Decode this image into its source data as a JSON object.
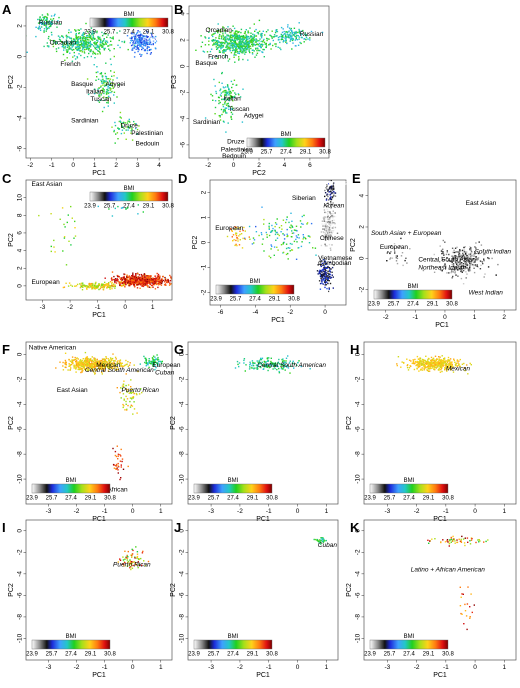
{
  "figure": {
    "panels": [
      "A",
      "B",
      "C",
      "D",
      "E",
      "F",
      "G",
      "H",
      "I",
      "J",
      "K"
    ]
  },
  "chart_data": [
    {
      "panel": "A",
      "type": "scatter",
      "xlabel": "PC1",
      "ylabel": "PC2",
      "xticks": [
        -2,
        -1,
        0,
        1,
        2,
        3,
        4
      ],
      "yticks": [
        2,
        0,
        -2,
        -4,
        -6
      ],
      "xlim": [
        -2.2,
        4.6
      ],
      "ylim": [
        -6.6,
        3.3
      ],
      "legend": {
        "title": "BMI",
        "ticks": [
          "23.9",
          "25.7",
          "27.4",
          "29.1",
          "30.8"
        ],
        "position": "top-right"
      },
      "annotations": [
        {
          "text": "Russian",
          "x": -1.6,
          "y": 2.1
        },
        {
          "text": "Orcadian",
          "x": -1.1,
          "y": 0.8
        },
        {
          "text": "French",
          "x": -0.6,
          "y": -0.6
        },
        {
          "text": "Ashkenazi",
          "x": 3.2,
          "y": 1.0,
          "white": true
        },
        {
          "text": "Basque",
          "x": -0.1,
          "y": -1.9
        },
        {
          "text": "Adygei",
          "x": 1.5,
          "y": -1.9
        },
        {
          "text": "Italian",
          "x": 0.6,
          "y": -2.4
        },
        {
          "text": "Tuscan",
          "x": 0.8,
          "y": -2.9
        },
        {
          "text": "Sardinian",
          "x": -0.1,
          "y": -4.3
        },
        {
          "text": "Druze",
          "x": 2.2,
          "y": -4.6
        },
        {
          "text": "Palestinian",
          "x": 2.7,
          "y": -5.1
        },
        {
          "text": "Bedouin",
          "x": 2.9,
          "y": -5.8
        }
      ],
      "clusters": [
        {
          "x": 0.4,
          "y": 0.9,
          "sx": 1.5,
          "sy": 0.8,
          "n": 450,
          "bmi": [
            26.8,
            28.0
          ]
        },
        {
          "x": -1.3,
          "y": 2.2,
          "sx": 0.5,
          "sy": 0.6,
          "n": 90,
          "bmi": [
            26.5,
            27.8
          ]
        },
        {
          "x": 3.2,
          "y": 1.0,
          "sx": 0.6,
          "sy": 0.6,
          "n": 220,
          "bmi": [
            25.7,
            26.6
          ]
        },
        {
          "x": 1.5,
          "y": -2.0,
          "sx": 0.5,
          "sy": 1.2,
          "n": 120,
          "bmi": [
            26.8,
            28.2
          ]
        },
        {
          "x": 2.4,
          "y": -4.6,
          "sx": 0.7,
          "sy": 0.7,
          "n": 60,
          "bmi": [
            26.8,
            28.2
          ]
        }
      ]
    },
    {
      "panel": "B",
      "type": "scatter",
      "xlabel": "PC2",
      "ylabel": "PC3",
      "xticks": [
        -2,
        0,
        2,
        4,
        6
      ],
      "yticks": [
        4,
        2,
        0,
        -2,
        -4,
        -6
      ],
      "xlim": [
        -3.5,
        7.5
      ],
      "ylim": [
        -7.0,
        4.6
      ],
      "legend": {
        "title": "BMI",
        "ticks": [
          "23.9",
          "25.7",
          "27.4",
          "29.1",
          "30.8"
        ],
        "position": "bottom-right"
      },
      "annotations": [
        {
          "text": "Orcadian",
          "x": -2.2,
          "y": 2.6
        },
        {
          "text": "Russian",
          "x": 5.2,
          "y": 2.3
        },
        {
          "text": "French",
          "x": -2.0,
          "y": 0.6
        },
        {
          "text": "Basque",
          "x": -3.0,
          "y": 0.1
        },
        {
          "text": "Italian",
          "x": -0.8,
          "y": -2.6
        },
        {
          "text": "Tuscan",
          "x": -0.4,
          "y": -3.4
        },
        {
          "text": "Adygei",
          "x": 0.8,
          "y": -3.9
        },
        {
          "text": "Sardinian",
          "x": -3.2,
          "y": -4.4
        },
        {
          "text": "Druze",
          "x": -0.5,
          "y": -5.9
        },
        {
          "text": "Palestinian",
          "x": -1.0,
          "y": -6.5
        },
        {
          "text": "Bedouin",
          "x": -0.9,
          "y": -7.0
        }
      ],
      "clusters": [
        {
          "x": 0.5,
          "y": 1.8,
          "sx": 2.3,
          "sy": 1.0,
          "n": 650,
          "bmi": [
            26.8,
            28.0
          ]
        },
        {
          "x": 4.5,
          "y": 2.3,
          "sx": 1.3,
          "sy": 0.7,
          "n": 140,
          "bmi": [
            26.6,
            27.6
          ]
        },
        {
          "x": -0.5,
          "y": -2.5,
          "sx": 1.0,
          "sy": 1.7,
          "n": 140,
          "bmi": [
            26.8,
            28.0
          ]
        }
      ]
    },
    {
      "panel": "C",
      "type": "scatter",
      "xlabel": "PC1",
      "ylabel": "PC2",
      "xticks": [
        -3,
        -2,
        -1,
        0,
        1
      ],
      "yticks": [
        10,
        8,
        6,
        4,
        2,
        0
      ],
      "xlim": [
        -3.6,
        1.7
      ],
      "ylim": [
        -1.6,
        12.0
      ],
      "legend": {
        "title": "BMI",
        "ticks": [
          "23.9",
          "25.7",
          "27.4",
          "29.1",
          "30.8"
        ],
        "position": "top-right"
      },
      "annotations": [
        {
          "text": "East Asian",
          "x": -3.4,
          "y": 11.3
        },
        {
          "text": "European",
          "x": -3.4,
          "y": 0.2
        }
      ],
      "clusters": [
        {
          "x": 0.6,
          "y": 0.6,
          "sx": 0.9,
          "sy": 0.6,
          "n": 700,
          "bmi": [
            29.5,
            30.8
          ]
        },
        {
          "x": -1.0,
          "y": 0.0,
          "sx": 0.9,
          "sy": 0.4,
          "n": 170,
          "bmi": [
            28.0,
            29.5
          ]
        },
        {
          "x": -2.3,
          "y": 6.0,
          "sx": 0.8,
          "sy": 3.0,
          "n": 25,
          "bmi": [
            27.4,
            29.0
          ]
        },
        {
          "x": -0.2,
          "y": 8.6,
          "sx": 1.0,
          "sy": 0.8,
          "n": 15,
          "bmi": [
            26.6,
            27.6
          ]
        }
      ]
    },
    {
      "panel": "D",
      "type": "scatter",
      "xlabel": "PC1",
      "ylabel": "PC2",
      "xticks": [
        -6,
        -4,
        -2,
        0
      ],
      "yticks": [
        2,
        1,
        0,
        -1,
        -2
      ],
      "xlim": [
        -6.6,
        1.2
      ],
      "ylim": [
        -2.5,
        2.5
      ],
      "legend": {
        "title": "BMI",
        "ticks": [
          "23.9",
          "25.7",
          "27.4",
          "29.1",
          "30.8"
        ],
        "position": "bottom-left"
      },
      "annotations": [
        {
          "text": "Japanese",
          "x": 0.1,
          "y": 2.3,
          "white": true
        },
        {
          "text": "Siberian",
          "x": -1.9,
          "y": 1.7
        },
        {
          "text": "Korean",
          "x": -0.1,
          "y": 1.4,
          "italic": true
        },
        {
          "text": "European",
          "x": -6.3,
          "y": 0.5
        },
        {
          "text": "Chinese",
          "x": -0.3,
          "y": 0.1
        },
        {
          "text": "Vietnamese",
          "x": -0.4,
          "y": -0.7
        },
        {
          "text": "Cambodian",
          "x": -0.4,
          "y": -0.9
        },
        {
          "text": "Filipino",
          "x": -0.1,
          "y": -2.1,
          "white": true
        }
      ],
      "clusters": [
        {
          "x": 0.3,
          "y": 2.0,
          "sx": 0.3,
          "sy": 0.4,
          "n": 80,
          "bmi": [
            24.5,
            25.7
          ]
        },
        {
          "x": 0.2,
          "y": 0.7,
          "sx": 0.35,
          "sy": 0.8,
          "n": 180,
          "bmi": [
            23.9,
            24.8
          ]
        },
        {
          "x": 0.0,
          "y": -1.3,
          "sx": 0.4,
          "sy": 0.6,
          "n": 150,
          "bmi": [
            25.0,
            26.0
          ]
        },
        {
          "x": -2.5,
          "y": 0.2,
          "sx": 1.8,
          "sy": 0.8,
          "n": 140,
          "bmi": [
            26.0,
            28.5
          ]
        },
        {
          "x": -5.0,
          "y": 0.3,
          "sx": 0.5,
          "sy": 0.4,
          "n": 40,
          "bmi": [
            28.5,
            30.0
          ]
        }
      ]
    },
    {
      "panel": "E",
      "type": "scatter",
      "xlabel": "PC1",
      "ylabel": "PC2",
      "xticks": [
        -2,
        -1,
        0,
        1,
        2
      ],
      "yticks": [
        4,
        2,
        0,
        -2
      ],
      "xlim": [
        -2.6,
        2.4
      ],
      "ylim": [
        -3.3,
        5.0
      ],
      "legend": {
        "title": "BMI",
        "ticks": [
          "23.9",
          "25.7",
          "27.4",
          "29.1",
          "30.8"
        ],
        "position": "bottom-left"
      },
      "annotations": [
        {
          "text": "East Asian",
          "x": 0.7,
          "y": 3.4
        },
        {
          "text": "South Asian + European",
          "x": -2.5,
          "y": 1.5,
          "italic": true
        },
        {
          "text": "European",
          "x": -2.2,
          "y": 0.6
        },
        {
          "text": "South Indian",
          "x": 1.0,
          "y": 0.3,
          "italic": true
        },
        {
          "text": "Central South Asian",
          "x": -0.9,
          "y": -0.2
        },
        {
          "text": "Northeast Indian",
          "x": -0.9,
          "y": -0.7,
          "italic": true
        },
        {
          "text": "West Indian",
          "x": 0.8,
          "y": -2.3,
          "italic": true
        }
      ],
      "clusters": [
        {
          "x": 0.6,
          "y": -0.1,
          "sx": 0.8,
          "sy": 0.9,
          "n": 320,
          "bmi": [
            24.2,
            25.2
          ]
        },
        {
          "x": -1.6,
          "y": 0.3,
          "sx": 0.5,
          "sy": 0.8,
          "n": 30,
          "bmi": [
            24.2,
            25.2
          ]
        }
      ]
    },
    {
      "panel": "F",
      "type": "scatter",
      "xlabel": "PC1",
      "ylabel": "PC2",
      "xticks": [
        -3,
        -2,
        -1,
        0,
        1
      ],
      "yticks": [
        0,
        -2,
        -4,
        -6,
        -8,
        -10
      ],
      "xlim": [
        -3.8,
        1.4
      ],
      "ylim": [
        -12.0,
        1.0
      ],
      "legend": {
        "title": "BMI",
        "ticks": [
          "23.9",
          "25.7",
          "27.4",
          "29.1",
          "30.8"
        ],
        "position": "bottom-left"
      },
      "annotations": [
        {
          "text": "Native American",
          "x": -3.7,
          "y": 0.4
        },
        {
          "text": "Mexican",
          "x": -1.3,
          "y": -1.0
        },
        {
          "text": "European",
          "x": 0.7,
          "y": -1.0
        },
        {
          "text": "Central South American",
          "x": -1.7,
          "y": -1.4,
          "italic": true
        },
        {
          "text": "Cuban",
          "x": 0.8,
          "y": -1.6,
          "italic": true
        },
        {
          "text": "East Asian",
          "x": -2.7,
          "y": -3.0
        },
        {
          "text": "Puerto Rican",
          "x": -0.4,
          "y": -3.0,
          "italic": true
        },
        {
          "text": "African",
          "x": -0.9,
          "y": -11.0
        }
      ],
      "clusters": [
        {
          "x": -1.4,
          "y": -0.8,
          "sx": 1.0,
          "sy": 0.5,
          "n": 500,
          "bmi": [
            28.5,
            29.5
          ]
        },
        {
          "x": 0.7,
          "y": -0.6,
          "sx": 0.3,
          "sy": 0.4,
          "n": 80,
          "bmi": [
            26.8,
            27.8
          ]
        },
        {
          "x": -0.1,
          "y": -3.3,
          "sx": 0.4,
          "sy": 1.4,
          "n": 60,
          "bmi": [
            28.0,
            29.5
          ]
        },
        {
          "x": -0.5,
          "y": -8.8,
          "sx": 0.3,
          "sy": 1.6,
          "n": 35,
          "bmi": [
            29.5,
            30.8
          ]
        }
      ]
    },
    {
      "panel": "G",
      "type": "scatter",
      "xlabel": "PC1",
      "ylabel": "PC2",
      "xticks": [
        -3,
        -2,
        -1,
        0,
        1
      ],
      "yticks": [
        0,
        -2,
        -4,
        -6,
        -8,
        -10
      ],
      "xlim": [
        -3.8,
        1.4
      ],
      "ylim": [
        -12.0,
        1.0
      ],
      "legend": {
        "title": "BMI",
        "ticks": [
          "23.9",
          "25.7",
          "27.4",
          "29.1",
          "30.8"
        ],
        "position": "bottom-left"
      },
      "annotations": [
        {
          "text": "Central South American",
          "x": -1.4,
          "y": -1.0,
          "italic": true
        }
      ],
      "clusters": [
        {
          "x": -1.0,
          "y": -0.8,
          "sx": 1.0,
          "sy": 0.5,
          "n": 170,
          "bmi": [
            26.8,
            27.8
          ]
        }
      ]
    },
    {
      "panel": "H",
      "type": "scatter",
      "xlabel": "PC1",
      "ylabel": "PC2",
      "xticks": [
        -3,
        -2,
        -1,
        0,
        1
      ],
      "yticks": [
        0,
        -2,
        -4,
        -6,
        -8,
        -10
      ],
      "xlim": [
        -3.8,
        1.4
      ],
      "ylim": [
        -12.0,
        1.0
      ],
      "legend": {
        "title": "BMI",
        "ticks": [
          "23.9",
          "25.7",
          "27.4",
          "29.1",
          "30.8"
        ],
        "position": "bottom-left"
      },
      "annotations": [
        {
          "text": "Mexican",
          "x": -1.0,
          "y": -1.3,
          "italic": true
        }
      ],
      "clusters": [
        {
          "x": -1.4,
          "y": -0.8,
          "sx": 0.9,
          "sy": 0.5,
          "n": 420,
          "bmi": [
            28.6,
            29.4
          ]
        }
      ]
    },
    {
      "panel": "I",
      "type": "scatter",
      "xlabel": "PC1",
      "ylabel": "PC2",
      "xticks": [
        -3,
        -2,
        -1,
        0,
        1
      ],
      "yticks": [
        0,
        -2,
        -4,
        -6,
        -8,
        -10
      ],
      "xlim": [
        -3.8,
        1.4
      ],
      "ylim": [
        -12.0,
        1.0
      ],
      "legend": {
        "title": "BMI",
        "ticks": [
          "23.9",
          "25.7",
          "27.4",
          "29.1",
          "30.8"
        ],
        "position": "bottom-left"
      },
      "annotations": [
        {
          "text": "Puerto Rican",
          "x": -0.7,
          "y": -3.3,
          "italic": true
        }
      ],
      "clusters": [
        {
          "x": 0.0,
          "y": -2.6,
          "sx": 0.4,
          "sy": 0.9,
          "n": 70,
          "bmi": [
            27.4,
            30.8
          ]
        }
      ]
    },
    {
      "panel": "J",
      "type": "scatter",
      "xlabel": "PC1",
      "ylabel": "PC2",
      "xticks": [
        -3,
        -2,
        -1,
        0,
        1
      ],
      "yticks": [
        0,
        -2,
        -4,
        -6,
        -8,
        -10
      ],
      "xlim": [
        -3.8,
        1.4
      ],
      "ylim": [
        -12.0,
        1.0
      ],
      "legend": {
        "title": "BMI",
        "ticks": [
          "23.9",
          "25.7",
          "27.4",
          "29.1",
          "30.8"
        ],
        "position": "bottom-left"
      },
      "annotations": [
        {
          "text": "Cuban",
          "x": 0.7,
          "y": -1.5,
          "italic": true
        }
      ],
      "clusters": [
        {
          "x": 0.8,
          "y": -0.9,
          "sx": 0.2,
          "sy": 0.3,
          "n": 30,
          "bmi": [
            26.8,
            28.0
          ]
        }
      ]
    },
    {
      "panel": "K",
      "type": "scatter",
      "xlabel": "PC1",
      "ylabel": "PC2",
      "xticks": [
        -3,
        -2,
        -1,
        0,
        1
      ],
      "yticks": [
        0,
        -2,
        -4,
        -6,
        -8,
        -10
      ],
      "xlim": [
        -3.8,
        1.4
      ],
      "ylim": [
        -12.0,
        1.0
      ],
      "legend": {
        "title": "BMI",
        "ticks": [
          "23.9",
          "25.7",
          "27.4",
          "29.1",
          "30.8"
        ],
        "position": "bottom-left"
      },
      "annotations": [
        {
          "text": "Latino + African American",
          "x": -2.2,
          "y": -3.8,
          "italic": true
        }
      ],
      "clusters": [
        {
          "x": -0.7,
          "y": -0.9,
          "sx": 1.0,
          "sy": 0.4,
          "n": 60,
          "bmi": [
            27.4,
            30.8
          ]
        },
        {
          "x": -0.3,
          "y": -7.0,
          "sx": 0.3,
          "sy": 2.0,
          "n": 20,
          "bmi": [
            29.0,
            30.8
          ]
        }
      ]
    }
  ]
}
